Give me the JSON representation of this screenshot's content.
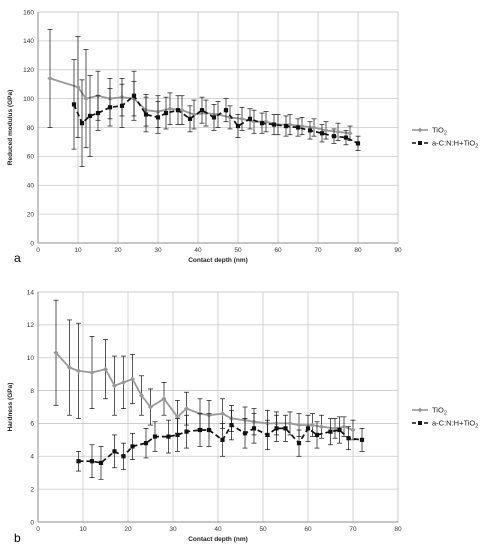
{
  "colors": {
    "tio2": "#999999",
    "acnh": "#111111",
    "grid": "#c8c8c8",
    "axis": "#8c8c8c"
  },
  "chart_data": [
    {
      "panel": "a",
      "type": "line",
      "xlabel": "Contact depth (nm)",
      "ylabel": "Reduced modulus (GPa)",
      "xlim": [
        0,
        90
      ],
      "ylim": [
        0,
        160
      ],
      "xticks": [
        0,
        10,
        20,
        30,
        40,
        50,
        60,
        70,
        80,
        90
      ],
      "yticks": [
        0,
        20,
        40,
        60,
        80,
        100,
        120,
        140,
        160
      ],
      "grid": true,
      "legend_position": "right",
      "series": [
        {
          "name": "TiO",
          "name_sub": "2",
          "style": "solid",
          "marker": "diamond",
          "x": [
            3,
            10,
            12,
            15,
            18,
            21,
            24,
            27,
            30,
            33,
            36,
            39,
            42,
            45,
            48,
            51,
            54,
            57,
            60,
            63,
            66,
            69,
            72,
            75,
            78
          ],
          "y": [
            114,
            108,
            100,
            102,
            100,
            101,
            100,
            92,
            91,
            93,
            92,
            89,
            90,
            89,
            87,
            86,
            84,
            84,
            82,
            82,
            81,
            80,
            78,
            77,
            76
          ],
          "err": [
            34,
            35,
            34,
            17,
            14,
            13,
            12,
            11,
            11,
            11,
            10,
            10,
            9,
            9,
            8,
            8,
            8,
            7,
            7,
            7,
            6,
            6,
            6,
            6,
            5
          ]
        },
        {
          "name": "a-C:N:H+TiO",
          "name_sub": "2",
          "style": "dashed",
          "marker": "square",
          "x": [
            9,
            11,
            13,
            15,
            18,
            21,
            24,
            27,
            30,
            32,
            35,
            38,
            41,
            44,
            47,
            50,
            53,
            56,
            59,
            62,
            65,
            68,
            71,
            74,
            77,
            80
          ],
          "y": [
            96,
            83,
            88,
            90,
            94,
            95,
            102,
            89,
            87,
            90,
            92,
            86,
            92,
            87,
            92,
            81,
            86,
            83,
            82,
            81,
            80,
            78,
            76,
            74,
            73,
            69
          ],
          "err": [
            31,
            30,
            28,
            12,
            13,
            15,
            17,
            12,
            11,
            11,
            10,
            9,
            9,
            9,
            8,
            8,
            7,
            7,
            7,
            7,
            6,
            6,
            6,
            5,
            5,
            5
          ]
        }
      ]
    },
    {
      "panel": "b",
      "type": "line",
      "xlabel": "Contact depth (nm)",
      "ylabel": "Hardness (GPa)",
      "xlim": [
        0,
        80
      ],
      "ylim": [
        0,
        14
      ],
      "xticks": [
        0,
        10,
        20,
        30,
        40,
        50,
        60,
        70,
        80
      ],
      "yticks": [
        0,
        2,
        4,
        6,
        8,
        10,
        12,
        14
      ],
      "grid": true,
      "legend_position": "right",
      "series": [
        {
          "name": "TiO",
          "name_sub": "2",
          "style": "solid",
          "marker": "diamond",
          "x": [
            4,
            7,
            9,
            12,
            15,
            17,
            19,
            21,
            23,
            25,
            28,
            31,
            33,
            36,
            38,
            41,
            43,
            46,
            48,
            51,
            53,
            56,
            58,
            61,
            63,
            66,
            68,
            70
          ],
          "y": [
            10.3,
            9.4,
            9.2,
            9.1,
            9.3,
            8.3,
            8.5,
            8.7,
            7.7,
            7.0,
            7.5,
            6.4,
            6.9,
            6.6,
            6.5,
            6.6,
            6.3,
            6.2,
            6.1,
            6.0,
            6.0,
            6.0,
            5.9,
            5.9,
            5.8,
            5.7,
            5.8,
            5.6
          ],
          "err": [
            3.2,
            2.9,
            2.9,
            2.2,
            1.8,
            1.8,
            1.6,
            1.5,
            1.2,
            1.1,
            1.0,
            1.0,
            1.0,
            0.9,
            0.9,
            0.9,
            0.8,
            0.8,
            0.8,
            0.8,
            0.7,
            0.7,
            0.7,
            0.7,
            0.7,
            0.6,
            0.6,
            0.6
          ]
        },
        {
          "name": "a-C:N:H+TiO",
          "name_sub": "2",
          "style": "dashed",
          "marker": "square",
          "x": [
            9,
            12,
            14,
            17,
            19,
            21,
            24,
            26,
            29,
            31,
            33,
            36,
            38,
            41,
            43,
            46,
            48,
            51,
            53,
            55,
            58,
            60,
            62,
            65,
            67,
            69,
            72
          ],
          "y": [
            3.7,
            3.7,
            3.6,
            4.3,
            4.0,
            4.6,
            4.8,
            5.2,
            5.2,
            5.3,
            5.5,
            5.6,
            5.6,
            5.0,
            5.9,
            5.4,
            5.7,
            5.3,
            5.7,
            5.7,
            4.8,
            5.7,
            5.3,
            5.5,
            5.6,
            5.1,
            5.0
          ],
          "err": [
            0.6,
            1.0,
            1.0,
            1.0,
            0.8,
            0.8,
            0.9,
            0.9,
            1.0,
            1.0,
            1.0,
            1.0,
            1.0,
            1.0,
            0.9,
            0.9,
            0.9,
            0.9,
            0.8,
            0.8,
            0.8,
            0.8,
            0.8,
            0.8,
            0.8,
            0.7,
            0.7
          ]
        }
      ]
    }
  ]
}
